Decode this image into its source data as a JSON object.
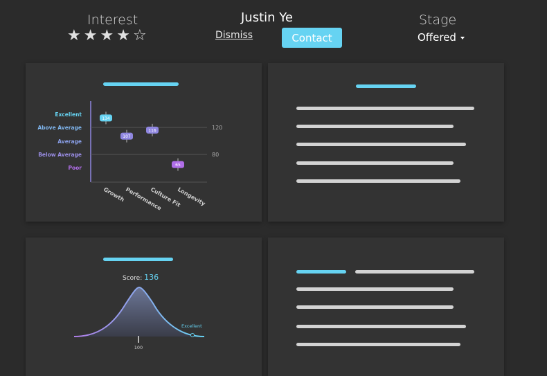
{
  "header": {
    "interest_label": "Interest",
    "stars": [
      "★",
      "★",
      "★",
      "★",
      "☆"
    ],
    "candidate_name": "Justin Ye",
    "dismiss_label": "Dismiss",
    "contact_label": "Contact",
    "stage_label": "Stage",
    "stage_value": "Offered",
    "colors": {
      "accent": "#66d3f2",
      "background": "#2b2b2b",
      "card": "#333333"
    }
  },
  "chart_data": [
    {
      "type": "scatter",
      "title": "",
      "categories": [
        "Growth",
        "Performance",
        "Culture Fit",
        "Longevity"
      ],
      "values": [
        134,
        107,
        116,
        65
      ],
      "value_labels": [
        "134",
        "107",
        "116",
        "65"
      ],
      "y_levels": [
        "Excellent",
        "Above Average",
        "Average",
        "Below Average",
        "Poor"
      ],
      "reference_lines": [
        "120",
        "80"
      ],
      "point_colors": [
        "#66d3f2",
        "#8f86e0",
        "#8f86e0",
        "#b06ee8"
      ]
    },
    {
      "type": "area",
      "title": "",
      "score_label": "Score:",
      "score_value": "136",
      "annotation": "Excellent",
      "x_tick": "100"
    }
  ]
}
